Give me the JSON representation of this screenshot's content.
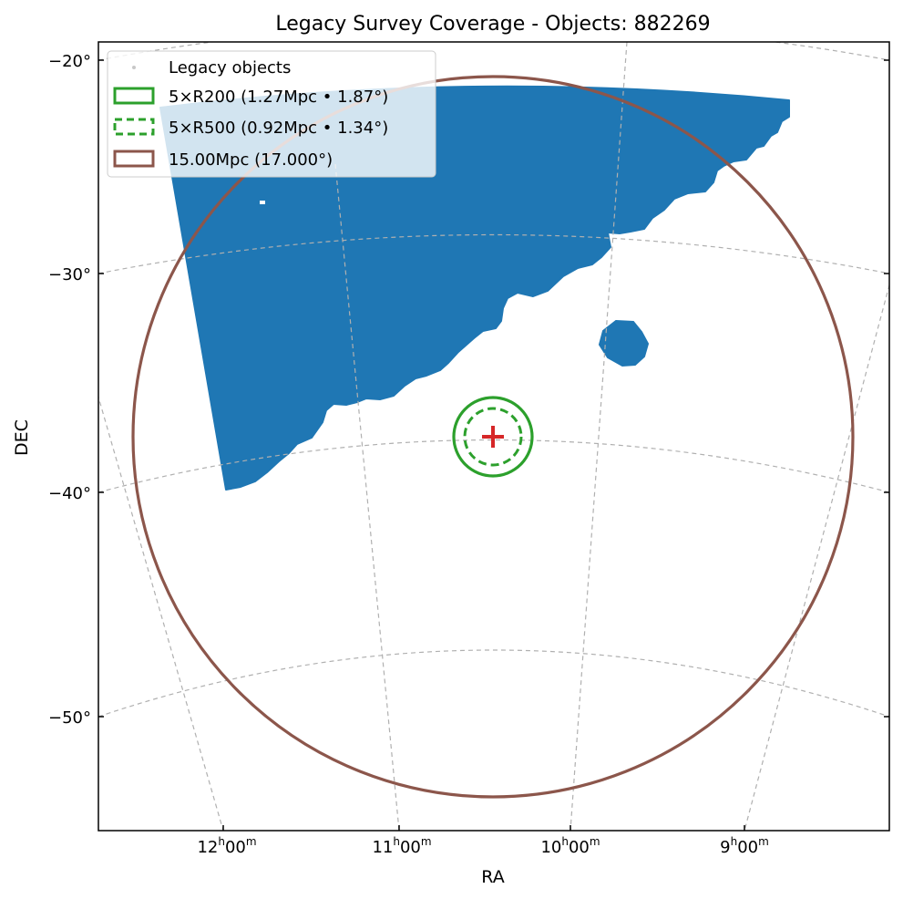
{
  "chart_data": {
    "type": "scatter",
    "title": "Legacy Survey Coverage - Objects: 882269",
    "xlabel": "RA",
    "ylabel": "DEC",
    "projection": "sky (gnomonic-like), RA increasing to the left",
    "object_count": 882269,
    "colors": {
      "objects": "#1f77b4",
      "r200": "#2ca02c",
      "r500": "#2ca02c",
      "big_circle": "#8c564b",
      "center": "#d62728",
      "grid": "#b0b0b0"
    },
    "x_ticks": [
      {
        "h": "12",
        "m": "00"
      },
      {
        "h": "11",
        "m": "00"
      },
      {
        "h": "10",
        "m": "00"
      },
      {
        "h": "9",
        "m": "00"
      }
    ],
    "y_ticks": [
      "−20°",
      "−30°",
      "−40°",
      "−50°"
    ],
    "center": {
      "ra_h": 10.43,
      "dec_deg": -37.5
    },
    "regions": {
      "legacy_footprint": {
        "approx_dec_range": [
          -40,
          -21
        ],
        "approx_ra_range_h": [
          8.8,
          12.4
        ]
      },
      "legacy_patch": {
        "approx_center_ra_h": 9.7,
        "approx_center_dec_deg": -33.2
      }
    },
    "legend": {
      "placement": "upper-left",
      "entries": [
        {
          "label": "Legacy objects",
          "style": "points"
        },
        {
          "label": "5×R200 (1.27Mpc • 1.87°)",
          "style": "solid-circle"
        },
        {
          "label": "5×R500 (0.92Mpc • 1.34°)",
          "style": "dashed-circle"
        },
        {
          "label": "15.00Mpc (17.000°)",
          "style": "solid-circle"
        }
      ]
    },
    "grid": true
  }
}
